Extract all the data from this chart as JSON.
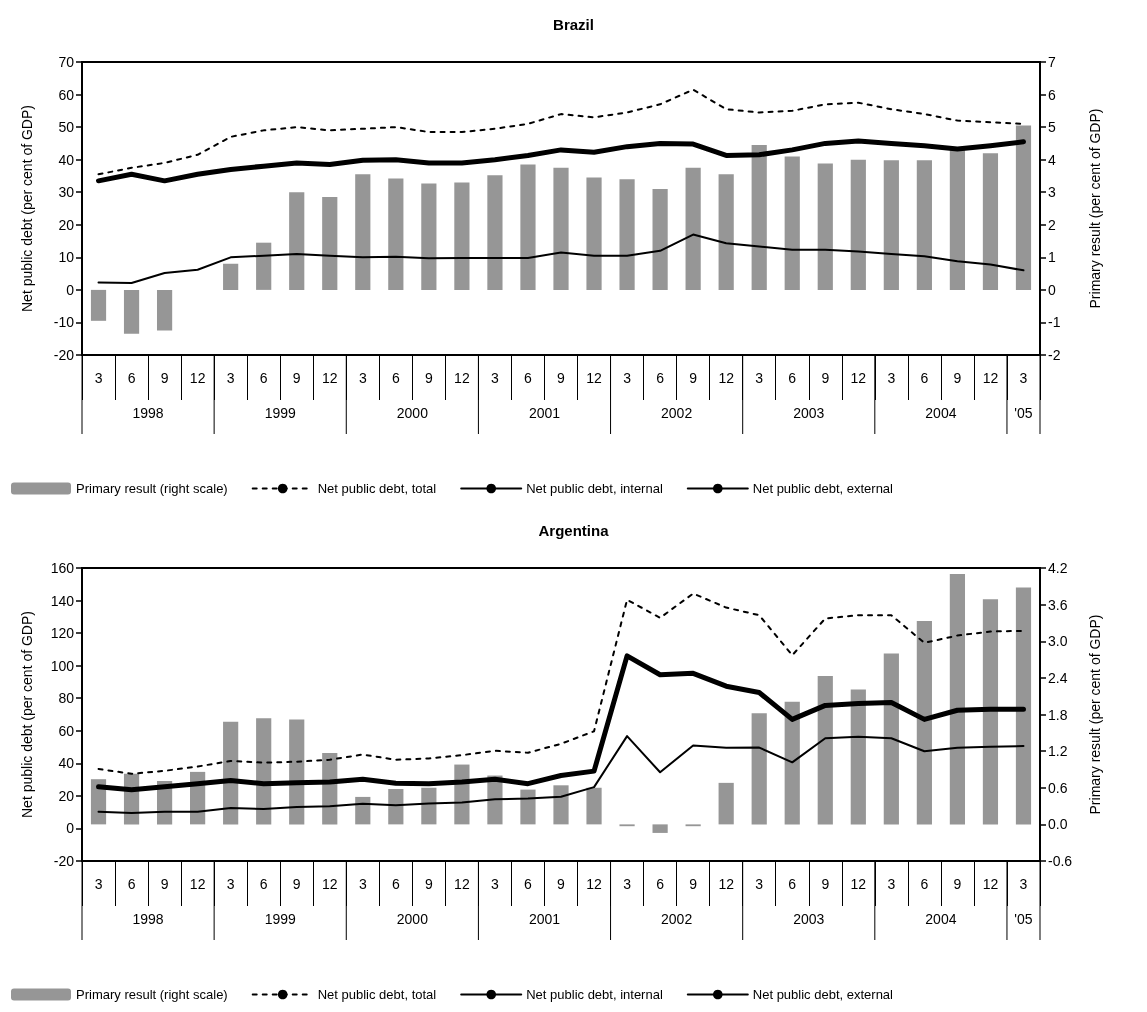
{
  "chart_data": [
    {
      "type": "line",
      "title": "Brazil",
      "ylabel": "Net public debt (per cent of GDP)",
      "y2label": "Primary result (per cent of GDP)",
      "categories": [
        "3",
        "6",
        "9",
        "12",
        "3",
        "6",
        "9",
        "12",
        "3",
        "6",
        "9",
        "12",
        "3",
        "6",
        "9",
        "12",
        "3",
        "6",
        "9",
        "12",
        "3",
        "6",
        "9",
        "12",
        "3",
        "6",
        "9",
        "12",
        "3"
      ],
      "annotations": [
        "1998",
        "1999",
        "2000",
        "2001",
        "2002",
        "2003",
        "2004",
        "'05"
      ],
      "ylim": [
        -20,
        70
      ],
      "yticks": [
        -20,
        -10,
        0,
        10,
        20,
        30,
        40,
        50,
        60,
        70
      ],
      "y2lim": [
        -2,
        7
      ],
      "y2ticks": [
        -2,
        -1,
        0,
        1,
        2,
        3,
        4,
        5,
        6,
        7
      ],
      "legend": "bottom",
      "marker": "none",
      "series": [
        {
          "name": "Primary result (right scale)",
          "type": "bar",
          "axis": "y2",
          "color": "#969696",
          "values": [
            -0.95,
            -1.35,
            -1.25,
            null,
            0.8,
            1.45,
            3.0,
            2.85,
            3.55,
            3.42,
            3.27,
            3.3,
            3.52,
            3.85,
            3.75,
            3.45,
            3.4,
            3.1,
            3.75,
            3.55,
            4.45,
            4.1,
            3.88,
            4.0,
            3.98,
            3.98,
            4.3,
            4.2,
            5.05
          ]
        },
        {
          "name": "Net public debt, total",
          "line_style": "dashed",
          "color": "#000000",
          "values": [
            35.5,
            37.5,
            39,
            41.5,
            47,
            49,
            50,
            49,
            49.5,
            50,
            48.5,
            48.5,
            49.5,
            51,
            54,
            53,
            54.5,
            57,
            61.5,
            55.5,
            54.5,
            55,
            57,
            57.5,
            55.5,
            54,
            52,
            51.5,
            51
          ]
        },
        {
          "name": "Net public debt, internal",
          "line_style": "solid",
          "color": "#000000",
          "values": [
            33.5,
            35.5,
            33.5,
            35.5,
            37,
            38,
            39,
            38.5,
            39.8,
            40,
            39,
            39,
            40,
            41.3,
            43,
            42.3,
            44,
            45,
            44.8,
            41.3,
            41.5,
            43,
            45,
            45.7,
            45,
            44.3,
            43.3,
            44.3,
            45.5
          ]
        },
        {
          "name": "Net public debt, external",
          "line_style": "solid",
          "color": "#000000",
          "values": [
            2.3,
            2.1,
            5.2,
            6.2,
            10,
            10.5,
            11,
            10.5,
            10,
            10.2,
            9.7,
            9.8,
            9.8,
            9.8,
            11.5,
            10.5,
            10.5,
            12,
            17,
            14.3,
            13.3,
            12.3,
            12.3,
            11.8,
            11,
            10.3,
            8.8,
            7.8,
            6
          ]
        }
      ]
    },
    {
      "type": "line",
      "title": "Argentina",
      "ylabel": "Net public debt (per cent of GDP)",
      "y2label": "Primary result (per cent of GDP)",
      "categories": [
        "3",
        "6",
        "9",
        "12",
        "3",
        "6",
        "9",
        "12",
        "3",
        "6",
        "9",
        "12",
        "3",
        "6",
        "9",
        "12",
        "3",
        "6",
        "9",
        "12",
        "3",
        "6",
        "9",
        "12",
        "3",
        "6",
        "9",
        "12",
        "3"
      ],
      "annotations": [
        "1998",
        "1999",
        "2000",
        "2001",
        "2002",
        "2003",
        "2004",
        "'05"
      ],
      "ylim": [
        -20,
        160
      ],
      "yticks": [
        -20,
        0,
        20,
        40,
        60,
        80,
        100,
        120,
        140,
        160
      ],
      "y2lim": [
        -0.6,
        4.2
      ],
      "y2ticks": [
        {
          "value": -0.6,
          "label": "-0.6"
        },
        {
          "value": 0,
          "label": "0.0"
        },
        {
          "value": 0.6,
          "label": "0.6"
        },
        {
          "value": 1.2,
          "label": "1.2"
        },
        {
          "value": 1.8,
          "label": "1.8"
        },
        {
          "value": 2.4,
          "label": "2.4"
        },
        {
          "value": 3,
          "label": "3.0"
        },
        {
          "value": 3.6,
          "label": "3.6"
        },
        {
          "value": 4.2,
          "label": "4.2"
        }
      ],
      "legend": "bottom",
      "marker": "none",
      "series": [
        {
          "name": "Primary result (right scale)",
          "type": "bar",
          "axis": "y2",
          "color": "#969696",
          "values": [
            0.74,
            0.83,
            0.71,
            0.86,
            1.68,
            1.74,
            1.72,
            1.17,
            0.45,
            0.58,
            0.6,
            0.98,
            0.8,
            0.57,
            0.64,
            0.6,
            -0.03,
            -0.14,
            -0.03,
            0.68,
            1.82,
            2.01,
            2.43,
            2.21,
            2.8,
            3.33,
            4.1,
            3.69,
            3.88
          ]
        },
        {
          "name": "Net public debt, total",
          "line_style": "dashed",
          "color": "#000000",
          "values": [
            36.5,
            33.6,
            35.4,
            38,
            41.5,
            40.4,
            41,
            42.2,
            45.4,
            42.2,
            43,
            45,
            47.7,
            46.5,
            52,
            59.7,
            140.5,
            129.4,
            144.3,
            135.7,
            131,
            106.4,
            129,
            131,
            131,
            114,
            118.5,
            121,
            121.4
          ]
        },
        {
          "name": "Net public debt, internal",
          "line_style": "solid",
          "color": "#000000",
          "values": [
            25.6,
            23.8,
            25.6,
            27.5,
            29.5,
            27.5,
            28.1,
            28.6,
            30.2,
            27.7,
            27.5,
            28.6,
            30.2,
            27.5,
            32.5,
            35.2,
            106,
            94.4,
            95.3,
            87.4,
            83.5,
            67,
            75.6,
            76.7,
            77.4,
            67,
            72.6,
            73.3,
            73.3
          ]
        },
        {
          "name": "Net public debt, external",
          "line_style": "solid",
          "color": "#000000",
          "values": [
            10.2,
            9.5,
            10.2,
            10.2,
            12.5,
            12,
            13.2,
            13.6,
            15.2,
            14.3,
            15.4,
            15.9,
            17.9,
            18.4,
            19.5,
            25.4,
            56.7,
            34.5,
            51,
            49.5,
            49.7,
            40.6,
            55.4,
            56.3,
            55.4,
            47.4,
            49.5,
            50.2,
            50.6
          ]
        }
      ]
    }
  ]
}
